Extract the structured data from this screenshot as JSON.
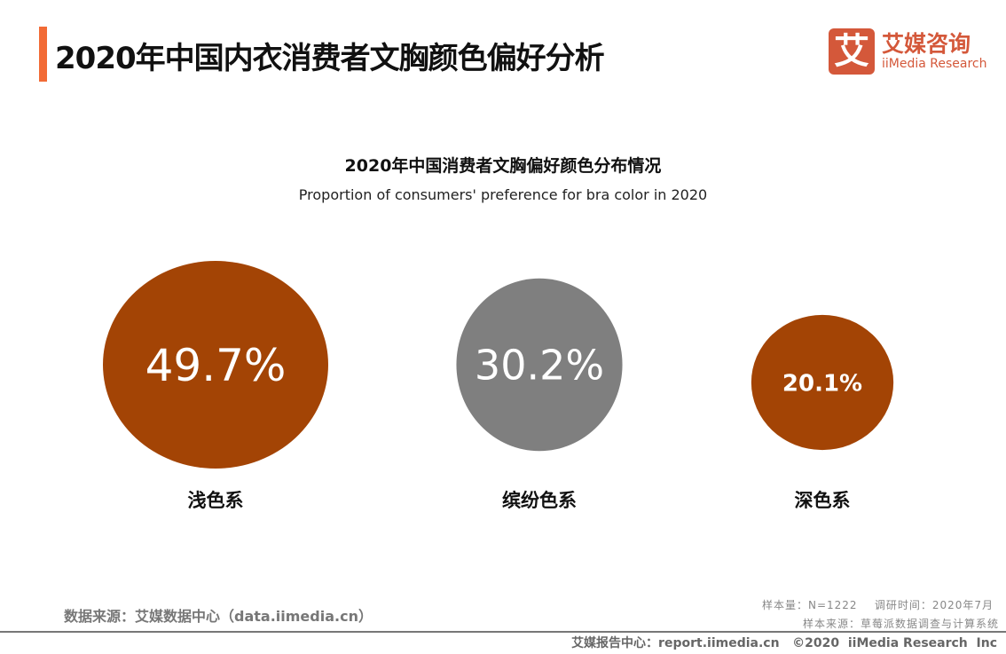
{
  "header": {
    "title": "2020年中国内衣消费者文胸颜色偏好分析",
    "accent_color": "#f26b36"
  },
  "logo": {
    "glyph": "艾",
    "cn": "艾媒咨询",
    "en": "iiMedia Research",
    "color": "#d4583a"
  },
  "chart_data": {
    "type": "bubble",
    "title": "2020年中国消费者文胸偏好颜色分布情况",
    "subtitle": "Proportion of consumers' preference for bra color in 2020",
    "categories": [
      "浅色系",
      "缤纷色系",
      "深色系"
    ],
    "values": [
      49.7,
      30.2,
      20.1
    ],
    "labels": [
      "49.7%",
      "30.2%",
      "20.1%"
    ],
    "colors": [
      "#a34405",
      "#7f7f7f",
      "#a34405"
    ],
    "unit": "%"
  },
  "footer": {
    "source": "数据来源：艾媒数据中心（data.iimedia.cn）",
    "sample": "样本量：N=1222    调研时间：2020年7月",
    "sample_source": "样本来源：草莓派数据调查与计算系统",
    "copyright": "艾媒报告中心：report.iimedia.cn   ©2020  iiMedia Research  Inc"
  }
}
